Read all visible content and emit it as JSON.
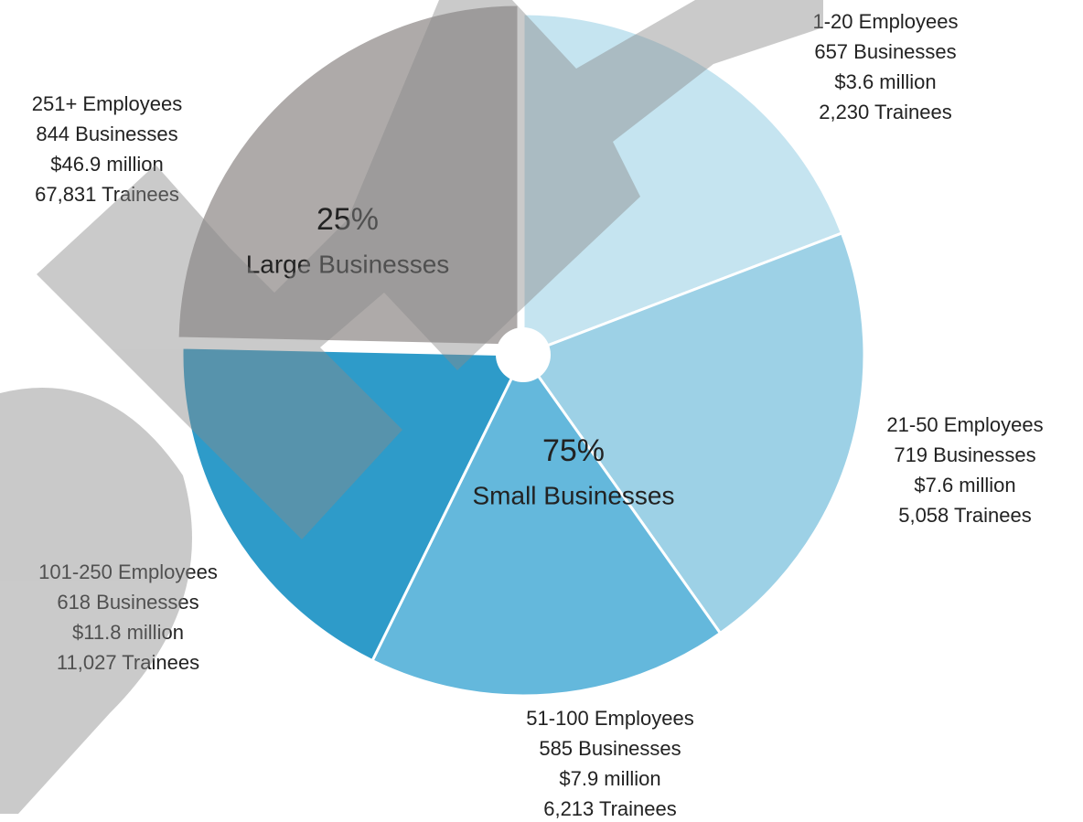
{
  "chart_data": {
    "type": "pie",
    "categories": [
      "1-20 Employees",
      "21-50 Employees",
      "51-100 Employees",
      "101-250 Employees",
      "251+ Employees"
    ],
    "values": [
      657,
      719,
      585,
      618,
      844
    ],
    "value_labels": [
      "657 Businesses",
      "719 Businesses",
      "585 Businesses",
      "618 Businesses",
      "844 Businesses"
    ],
    "funding_labels": [
      "$3.6 million",
      "$7.6 million",
      "$7.9 million",
      "$11.8 million",
      "$46.9 million"
    ],
    "trainee_labels": [
      "2,230 Trainees",
      "5,058 Trainees",
      "6,213 Trainees",
      "11,027 Trainees",
      "67,831 Trainees"
    ],
    "colors": [
      "#c5e4f0",
      "#9dd1e6",
      "#64b8dc",
      "#2e9bc9",
      "#aeaaa9"
    ],
    "groups": [
      {
        "value": 75,
        "label": "75%",
        "name": "Small Businesses"
      },
      {
        "value": 25,
        "label": "25%",
        "name": "Large Businesses"
      }
    ]
  }
}
